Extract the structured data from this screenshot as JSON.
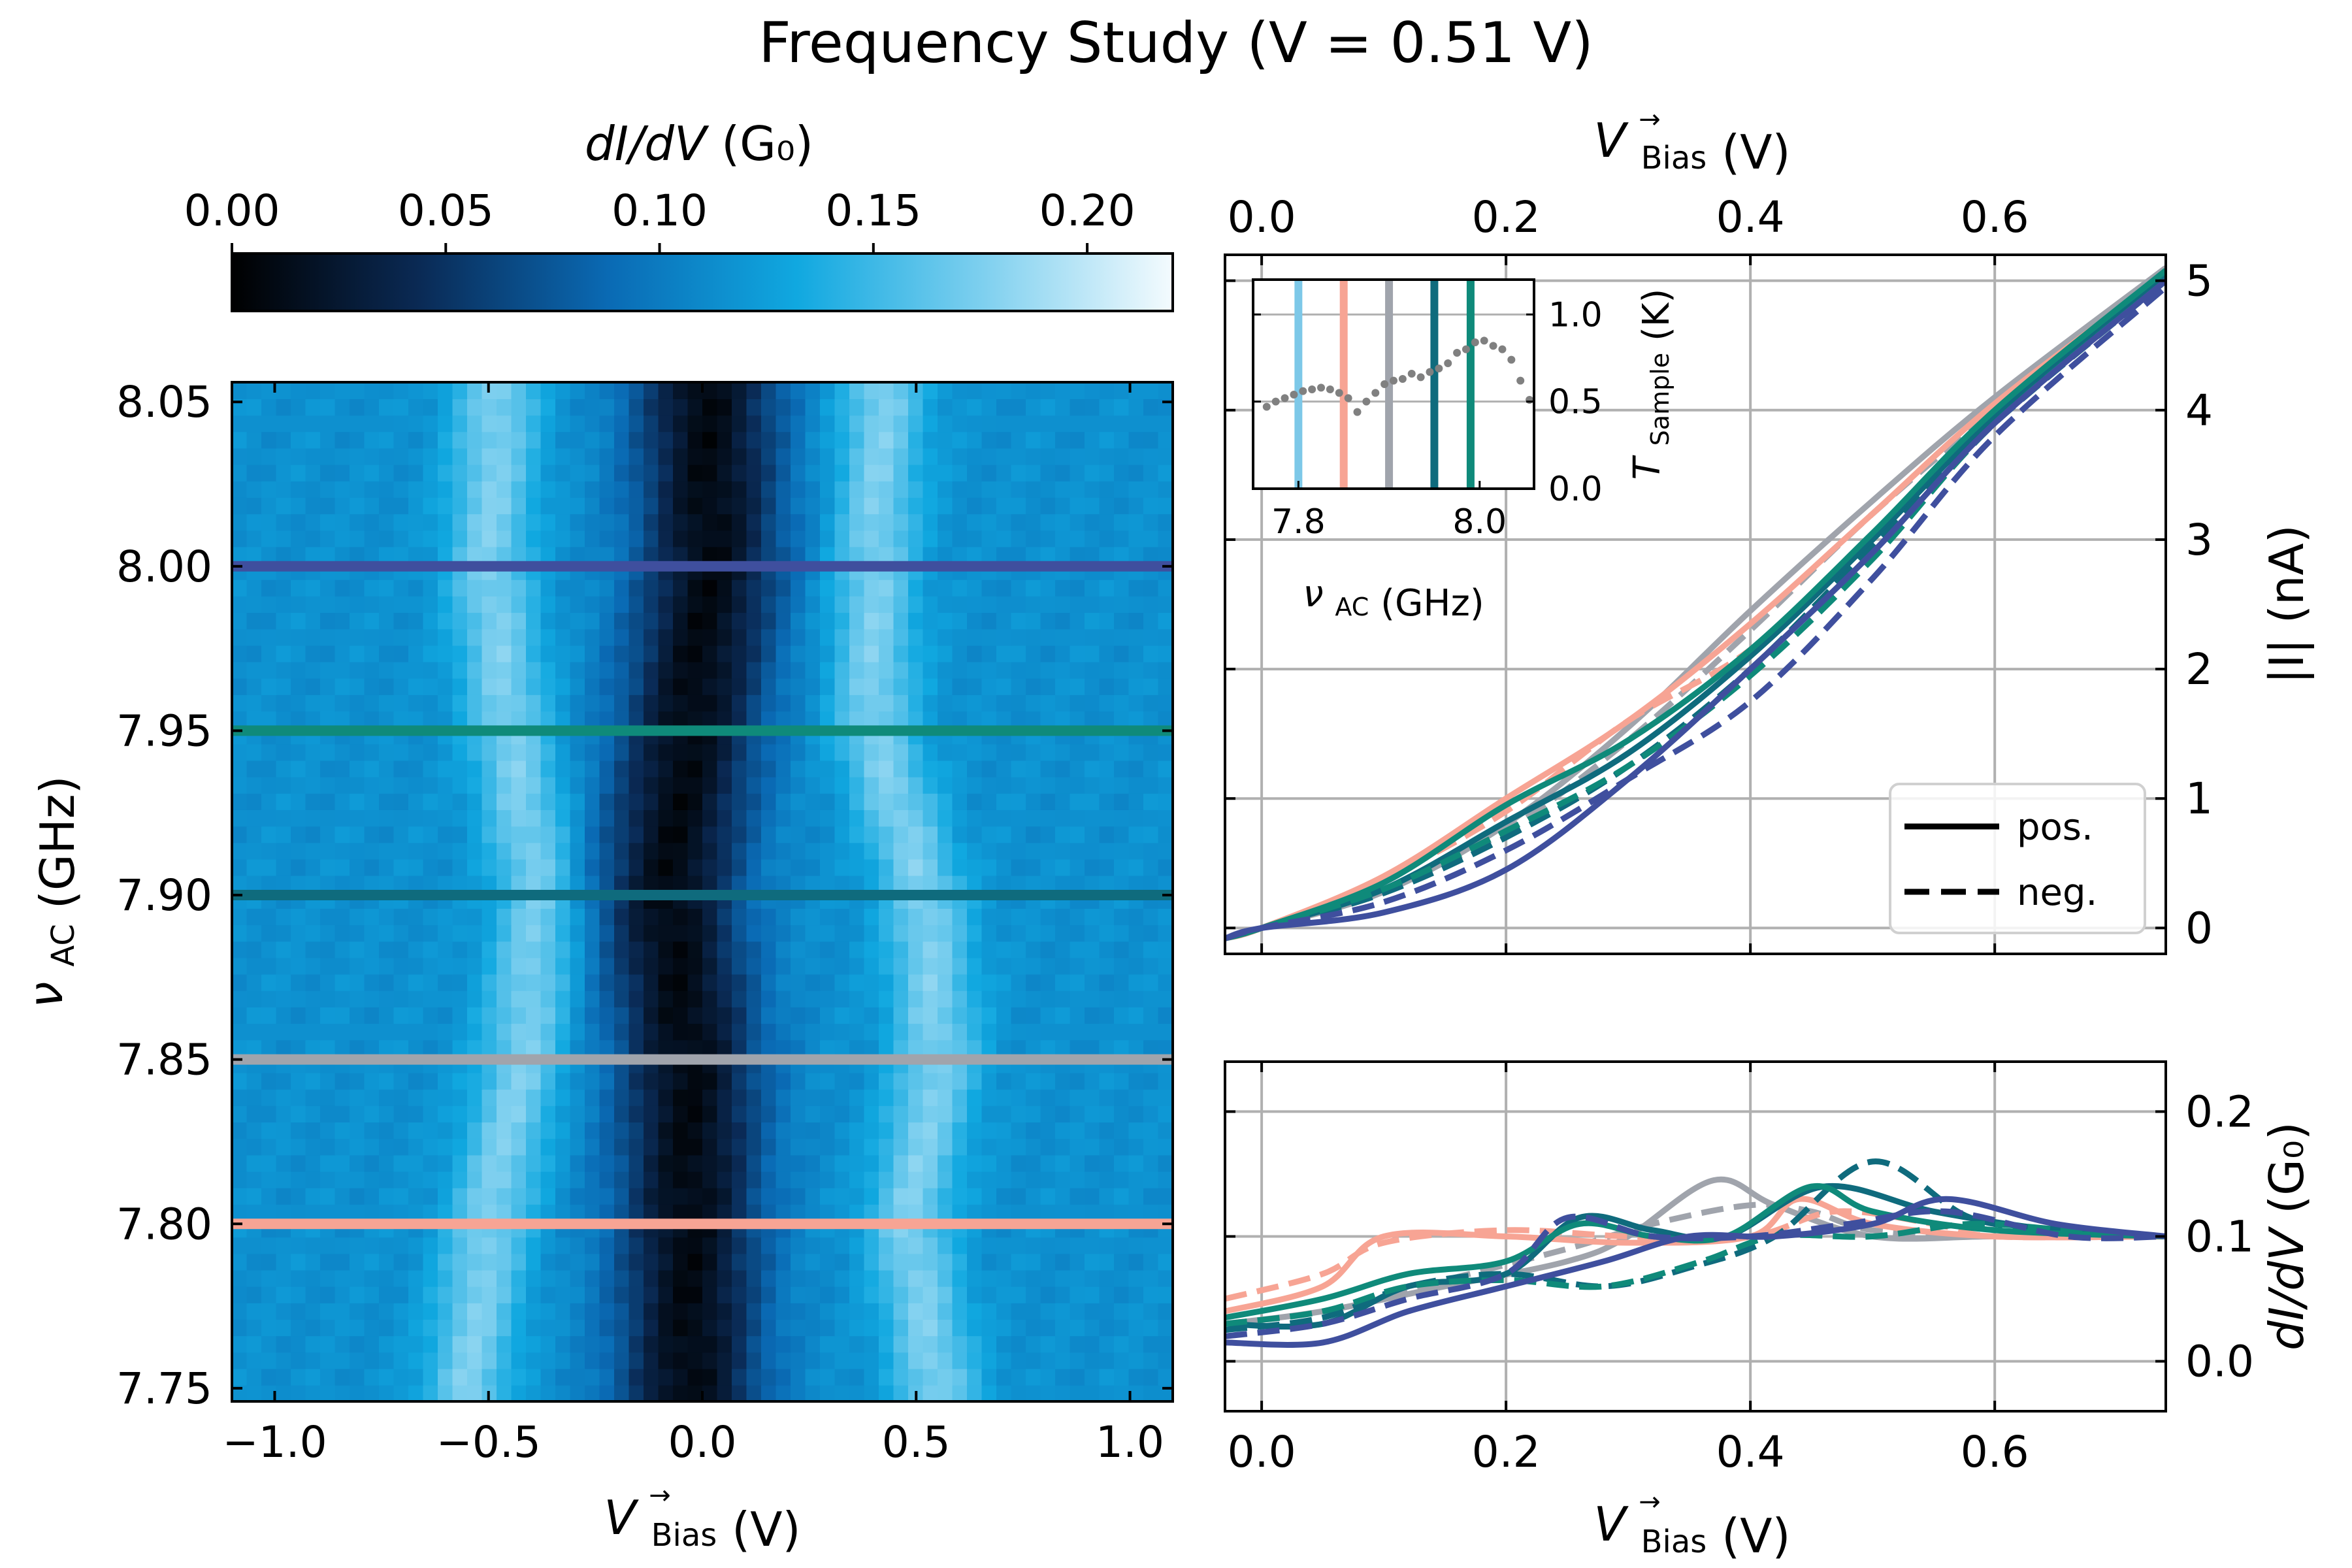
{
  "figure": {
    "title": "Frequency Study (V = 0.51 V)"
  },
  "chart_data": [
    {
      "type": "heatmap",
      "id": "map",
      "xlabel_main": "V",
      "xlabel_sup": "→",
      "xlabel_sub": "Bias",
      "xlabel_unit": "(V)",
      "ylabel_main": "ν",
      "ylabel_sub": "AC",
      "ylabel_unit": "(GHz)",
      "xlim": [
        -1.1,
        1.1
      ],
      "ylim": [
        7.746,
        8.056
      ],
      "xticks": [
        "−1.0",
        "−0.5",
        "0.0",
        "0.5",
        "1.0"
      ],
      "xtick_values": [
        -1.0,
        -0.5,
        0.0,
        0.5,
        1.0
      ],
      "yticks": [
        "7.75",
        "7.80",
        "7.85",
        "7.90",
        "7.95",
        "8.00",
        "8.05"
      ],
      "ytick_values": [
        7.75,
        7.8,
        7.85,
        7.9,
        7.95,
        8.0,
        8.05
      ],
      "colorbar": {
        "label_main": "dI/dV",
        "label_unit": "(G₀)",
        "ticks": [
          "0.00",
          "0.05",
          "0.10",
          "0.15",
          "0.20"
        ],
        "tick_values": [
          0.0,
          0.05,
          0.1,
          0.15,
          0.2
        ],
        "range": [
          0.0,
          0.22
        ],
        "colormap_stops": [
          "#000000",
          "#0a2a55",
          "#0a6ab4",
          "#10a8e0",
          "#7fd0ef",
          "#f4fbfe"
        ]
      },
      "background_value": 0.115,
      "features": {
        "dip_center": [
          [
            7.75,
            -0.03
          ],
          [
            7.85,
            -0.03
          ],
          [
            7.9,
            -0.08
          ],
          [
            7.95,
            -0.03
          ],
          [
            8.0,
            0.02
          ],
          [
            8.05,
            0.01
          ]
        ],
        "dip_width_V": 0.17,
        "dip_min_value": 0.01,
        "left_peak": [
          [
            7.75,
            -0.55
          ],
          [
            7.8,
            -0.5
          ],
          [
            7.85,
            -0.42
          ],
          [
            7.9,
            -0.38
          ],
          [
            7.95,
            -0.45
          ],
          [
            8.0,
            -0.5
          ],
          [
            8.05,
            -0.48
          ]
        ],
        "right_peak": [
          [
            7.75,
            0.55
          ],
          [
            7.8,
            0.48
          ],
          [
            7.85,
            0.55
          ],
          [
            7.9,
            0.52
          ],
          [
            7.95,
            0.4
          ],
          [
            8.0,
            0.4
          ],
          [
            8.05,
            0.42
          ]
        ],
        "peak_value": 0.175
      },
      "markers": [
        {
          "nu": 8.0,
          "color": "#3f4f9e"
        },
        {
          "nu": 7.95,
          "color": "#0f8a7a"
        },
        {
          "nu": 7.9,
          "color": "#0f6b7d"
        },
        {
          "nu": 7.85,
          "color": "#a0a4ac"
        },
        {
          "nu": 7.8,
          "color": "#f7a494"
        }
      ]
    },
    {
      "type": "line",
      "id": "iv",
      "ylabel": "|I| (nA)",
      "top_xlabel_main": "V",
      "top_xlabel_sup": "→",
      "top_xlabel_sub": "Bias",
      "top_xlabel_unit": "(V)",
      "xlim": [
        -0.03,
        0.74
      ],
      "ylim": [
        -0.2,
        5.2
      ],
      "xticks": [
        "0.0",
        "0.2",
        "0.4",
        "0.6"
      ],
      "xtick_values": [
        0.0,
        0.2,
        0.4,
        0.6
      ],
      "yticks": [
        "0",
        "1",
        "2",
        "3",
        "4",
        "5"
      ],
      "ytick_values": [
        0,
        1,
        2,
        3,
        4,
        5
      ],
      "grid": true,
      "legend": {
        "position": "bottom-right",
        "entries": [
          {
            "label": "pos.",
            "style": "solid"
          },
          {
            "label": "neg.",
            "style": "dashed"
          }
        ]
      },
      "series": [
        {
          "color": "#a0a4ac",
          "style": "solid",
          "x": [
            -0.03,
            0.0,
            0.1,
            0.2,
            0.3,
            0.4,
            0.5,
            0.6,
            0.74
          ],
          "y": [
            -0.08,
            0.0,
            0.28,
            0.8,
            1.55,
            2.45,
            3.3,
            4.1,
            5.1
          ]
        },
        {
          "color": "#a0a4ac",
          "style": "dashed",
          "x": [
            -0.03,
            0.0,
            0.1,
            0.2,
            0.3,
            0.4,
            0.5,
            0.6,
            0.74
          ],
          "y": [
            -0.08,
            0.0,
            0.3,
            0.75,
            1.45,
            2.3,
            3.2,
            4.0,
            5.05
          ]
        },
        {
          "color": "#f7a494",
          "style": "solid",
          "x": [
            -0.03,
            0.0,
            0.1,
            0.2,
            0.3,
            0.4,
            0.5,
            0.6,
            0.74
          ],
          "y": [
            -0.08,
            0.0,
            0.4,
            1.0,
            1.6,
            2.35,
            3.2,
            4.05,
            5.05
          ]
        },
        {
          "color": "#f7a494",
          "style": "dashed",
          "x": [
            -0.03,
            0.0,
            0.1,
            0.2,
            0.3,
            0.4,
            0.5,
            0.6,
            0.74
          ],
          "y": [
            -0.08,
            0.0,
            0.38,
            0.9,
            1.6,
            2.15,
            3.0,
            4.0,
            5.02
          ]
        },
        {
          "color": "#0f6b7d",
          "style": "solid",
          "x": [
            -0.03,
            0.0,
            0.1,
            0.2,
            0.3,
            0.4,
            0.5,
            0.6,
            0.74
          ],
          "y": [
            -0.08,
            0.0,
            0.3,
            0.82,
            1.35,
            2.1,
            3.0,
            3.95,
            5.05
          ]
        },
        {
          "color": "#0f6b7d",
          "style": "dashed",
          "x": [
            -0.03,
            0.0,
            0.1,
            0.2,
            0.3,
            0.4,
            0.5,
            0.6,
            0.74
          ],
          "y": [
            -0.08,
            0.0,
            0.27,
            0.7,
            1.25,
            2.0,
            2.95,
            3.9,
            5.0
          ]
        },
        {
          "color": "#0f8a7a",
          "style": "solid",
          "x": [
            -0.03,
            0.0,
            0.1,
            0.2,
            0.3,
            0.4,
            0.5,
            0.6,
            0.74
          ],
          "y": [
            -0.08,
            0.0,
            0.35,
            0.95,
            1.45,
            2.15,
            3.05,
            4.0,
            5.08
          ]
        },
        {
          "color": "#0f8a7a",
          "style": "dashed",
          "x": [
            -0.03,
            0.0,
            0.1,
            0.2,
            0.3,
            0.4,
            0.5,
            0.6,
            0.74
          ],
          "y": [
            -0.08,
            0.0,
            0.3,
            0.75,
            1.25,
            1.95,
            2.85,
            3.9,
            5.0
          ]
        },
        {
          "color": "#3f4f9e",
          "style": "solid",
          "x": [
            -0.03,
            0.0,
            0.1,
            0.2,
            0.3,
            0.4,
            0.5,
            0.6,
            0.74
          ],
          "y": [
            -0.08,
            0.0,
            0.12,
            0.45,
            1.15,
            2.0,
            2.9,
            3.9,
            5.0
          ]
        },
        {
          "color": "#3f4f9e",
          "style": "dashed",
          "x": [
            -0.03,
            0.0,
            0.1,
            0.2,
            0.3,
            0.4,
            0.5,
            0.6,
            0.74
          ],
          "y": [
            -0.08,
            0.0,
            0.2,
            0.6,
            1.15,
            1.75,
            2.7,
            3.8,
            4.95
          ]
        }
      ]
    },
    {
      "type": "scatter",
      "id": "inset",
      "xlabel_main": "ν",
      "xlabel_sub": "AC",
      "xlabel_unit": "(GHz)",
      "ylabel_main": "T",
      "ylabel_sub": "Sample",
      "ylabel_unit": "(K)",
      "xlim": [
        7.75,
        8.06
      ],
      "ylim": [
        0.0,
        1.2
      ],
      "xticks": [
        "7.8",
        "8.0"
      ],
      "xtick_values": [
        7.8,
        8.0
      ],
      "yticks": [
        "0.0",
        "0.5",
        "1.0"
      ],
      "ytick_values": [
        0.0,
        0.5,
        1.0
      ],
      "vlines": [
        {
          "nu": 7.8,
          "color": "#7dc8e8"
        },
        {
          "nu": 7.85,
          "color": "#f7a494"
        },
        {
          "nu": 7.9,
          "color": "#a0a4ac"
        },
        {
          "nu": 7.95,
          "color": "#0f6b7d"
        },
        {
          "nu": 7.99,
          "color": "#0f8a7a"
        }
      ],
      "points_color": "#808080",
      "x": [
        7.765,
        7.775,
        7.785,
        7.795,
        7.805,
        7.815,
        7.825,
        7.835,
        7.845,
        7.855,
        7.865,
        7.875,
        7.885,
        7.895,
        7.905,
        7.915,
        7.925,
        7.935,
        7.945,
        7.955,
        7.965,
        7.975,
        7.985,
        7.995,
        8.005,
        8.015,
        8.025,
        8.035,
        8.045,
        8.055
      ],
      "y": [
        0.47,
        0.5,
        0.52,
        0.54,
        0.56,
        0.57,
        0.58,
        0.57,
        0.55,
        0.52,
        0.44,
        0.5,
        0.55,
        0.6,
        0.62,
        0.63,
        0.66,
        0.64,
        0.67,
        0.69,
        0.72,
        0.78,
        0.8,
        0.84,
        0.85,
        0.82,
        0.8,
        0.74,
        0.62,
        0.51
      ]
    },
    {
      "type": "line",
      "id": "didv",
      "xlabel_main": "V",
      "xlabel_sup": "→",
      "xlabel_sub": "Bias",
      "xlabel_unit": "(V)",
      "ylabel_main": "dI/dV",
      "ylabel_unit": "(G₀)",
      "xlim": [
        -0.03,
        0.74
      ],
      "ylim": [
        -0.04,
        0.24
      ],
      "xticks": [
        "0.0",
        "0.2",
        "0.4",
        "0.6"
      ],
      "xtick_values": [
        0.0,
        0.2,
        0.4,
        0.6
      ],
      "yticks": [
        "0.0",
        "0.1",
        "0.2"
      ],
      "ytick_values": [
        0.0,
        0.1,
        0.2
      ],
      "grid": true,
      "series": [
        {
          "color": "#a0a4ac",
          "style": "solid",
          "x": [
            -0.03,
            0.05,
            0.15,
            0.25,
            0.3,
            0.37,
            0.42,
            0.5,
            0.6,
            0.74
          ],
          "y": [
            0.03,
            0.04,
            0.06,
            0.08,
            0.1,
            0.145,
            0.125,
            0.1,
            0.1,
            0.1
          ]
        },
        {
          "color": "#a0a4ac",
          "style": "dashed",
          "x": [
            -0.03,
            0.05,
            0.15,
            0.25,
            0.32,
            0.4,
            0.45,
            0.5,
            0.6,
            0.74
          ],
          "y": [
            0.03,
            0.04,
            0.065,
            0.09,
            0.11,
            0.125,
            0.12,
            0.105,
            0.1,
            0.1
          ]
        },
        {
          "color": "#f7a494",
          "style": "solid",
          "x": [
            -0.03,
            0.05,
            0.1,
            0.2,
            0.3,
            0.4,
            0.44,
            0.5,
            0.6,
            0.74
          ],
          "y": [
            0.04,
            0.06,
            0.1,
            0.1,
            0.095,
            0.1,
            0.13,
            0.11,
            0.1,
            0.1
          ]
        },
        {
          "color": "#f7a494",
          "style": "dashed",
          "x": [
            -0.03,
            0.05,
            0.1,
            0.2,
            0.3,
            0.4,
            0.47,
            0.55,
            0.6,
            0.74
          ],
          "y": [
            0.05,
            0.07,
            0.095,
            0.105,
            0.1,
            0.1,
            0.12,
            0.11,
            0.1,
            0.1
          ]
        },
        {
          "color": "#0f6b7d",
          "style": "solid",
          "x": [
            -0.03,
            0.05,
            0.12,
            0.2,
            0.26,
            0.32,
            0.38,
            0.46,
            0.55,
            0.65,
            0.74
          ],
          "y": [
            0.03,
            0.03,
            0.06,
            0.07,
            0.115,
            0.105,
            0.1,
            0.14,
            0.12,
            0.105,
            0.1
          ]
        },
        {
          "color": "#0f6b7d",
          "style": "dashed",
          "x": [
            -0.03,
            0.05,
            0.12,
            0.2,
            0.28,
            0.35,
            0.42,
            0.5,
            0.58,
            0.66,
            0.74
          ],
          "y": [
            0.025,
            0.035,
            0.06,
            0.07,
            0.06,
            0.075,
            0.1,
            0.16,
            0.115,
            0.105,
            0.1
          ]
        },
        {
          "color": "#0f8a7a",
          "style": "solid",
          "x": [
            -0.03,
            0.05,
            0.12,
            0.2,
            0.26,
            0.32,
            0.38,
            0.45,
            0.5,
            0.6,
            0.74
          ],
          "y": [
            0.035,
            0.05,
            0.07,
            0.08,
            0.11,
            0.1,
            0.1,
            0.14,
            0.12,
            0.105,
            0.1
          ]
        },
        {
          "color": "#0f8a7a",
          "style": "dashed",
          "x": [
            -0.03,
            0.05,
            0.12,
            0.2,
            0.28,
            0.36,
            0.42,
            0.5,
            0.58,
            0.66,
            0.74
          ],
          "y": [
            0.03,
            0.04,
            0.06,
            0.065,
            0.06,
            0.08,
            0.1,
            0.1,
            0.11,
            0.105,
            0.1
          ]
        },
        {
          "color": "#3f4f9e",
          "style": "solid",
          "x": [
            -0.03,
            0.05,
            0.12,
            0.2,
            0.28,
            0.35,
            0.42,
            0.5,
            0.56,
            0.65,
            0.74
          ],
          "y": [
            0.015,
            0.015,
            0.04,
            0.06,
            0.08,
            0.1,
            0.1,
            0.11,
            0.13,
            0.11,
            0.1
          ]
        },
        {
          "color": "#3f4f9e",
          "style": "dashed",
          "x": [
            -0.03,
            0.05,
            0.12,
            0.2,
            0.25,
            0.32,
            0.4,
            0.48,
            0.56,
            0.66,
            0.74
          ],
          "y": [
            0.02,
            0.03,
            0.05,
            0.07,
            0.115,
            0.1,
            0.1,
            0.11,
            0.12,
            0.1,
            0.1
          ]
        }
      ]
    }
  ]
}
